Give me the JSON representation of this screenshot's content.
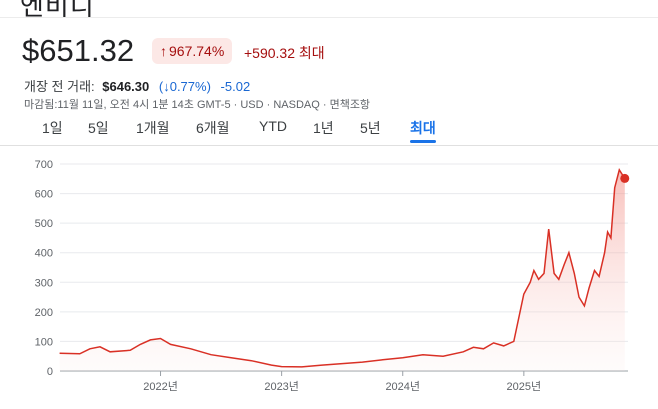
{
  "header": {
    "title_fragment": "엔비디"
  },
  "quote": {
    "price": "$651.32",
    "change_pct": "967.74%",
    "change_abs": "+590.32 최대",
    "arrow_glyph": "↑"
  },
  "premarket": {
    "label": "개장 전 거래:",
    "price": "$646.30",
    "change_pct": "(↓0.77%)",
    "change_abs": "-5.02"
  },
  "meta": "마감됨:11월 11일, 오전 4시 1분 14초 GMT-5 · USD · NASDAQ · 면책조항",
  "tabs": [
    {
      "label": "1일"
    },
    {
      "label": "5일"
    },
    {
      "label": "1개월"
    },
    {
      "label": "6개월"
    },
    {
      "label": "YTD"
    },
    {
      "label": "1년"
    },
    {
      "label": "5년"
    },
    {
      "label": "최대"
    }
  ],
  "active_tab": "최대",
  "colors": {
    "line": "#d93025",
    "fill_top": "#f28b82",
    "positive": "#a50e0e",
    "accent": "#1a73e8"
  },
  "chart_data": {
    "type": "area",
    "title": "",
    "xlabel": "",
    "ylabel": "",
    "ylim": [
      0,
      700
    ],
    "y_ticks": [
      "0",
      "100",
      "200",
      "300",
      "400",
      "500",
      "600",
      "700"
    ],
    "x_ticks": [
      "2022년",
      "2023년",
      "2024년",
      "2025년"
    ],
    "grid": true,
    "series": [
      {
        "x": [
          "2021-03",
          "2021-05",
          "2021-06",
          "2021-07",
          "2021-08",
          "2021-10",
          "2021-11",
          "2021-12",
          "2022-01",
          "2022-02",
          "2022-04",
          "2022-06",
          "2022-08",
          "2022-10",
          "2022-12",
          "2023-01",
          "2023-03",
          "2023-05",
          "2023-07",
          "2023-09",
          "2023-11",
          "2024-01",
          "2024-03",
          "2024-05",
          "2024-07",
          "2024-08",
          "2024-09",
          "2024-10",
          "2024-11",
          "2024-12",
          "2025-01",
          "2025-01-20",
          "2025-02",
          "2025-02-15",
          "2025-03",
          "2025-03-15",
          "2025-04",
          "2025-04-15",
          "2025-05",
          "2025-05-15",
          "2025-06",
          "2025-06-15",
          "2025-07",
          "2025-07-15",
          "2025-08",
          "2025-08-15",
          "2025-09",
          "2025-09-10",
          "2025-09-20",
          "2025-10",
          "2025-10-15",
          "2025-11"
        ],
        "values": [
          60,
          58,
          75,
          82,
          65,
          70,
          90,
          105,
          110,
          90,
          75,
          55,
          45,
          35,
          20,
          15,
          14,
          20,
          25,
          30,
          38,
          45,
          55,
          50,
          65,
          80,
          75,
          95,
          85,
          100,
          260,
          300,
          340,
          310,
          330,
          480,
          330,
          310,
          360,
          400,
          330,
          250,
          220,
          280,
          340,
          320,
          400,
          470,
          450,
          620,
          680,
          651
        ]
      }
    ],
    "last_value": 651.32
  }
}
